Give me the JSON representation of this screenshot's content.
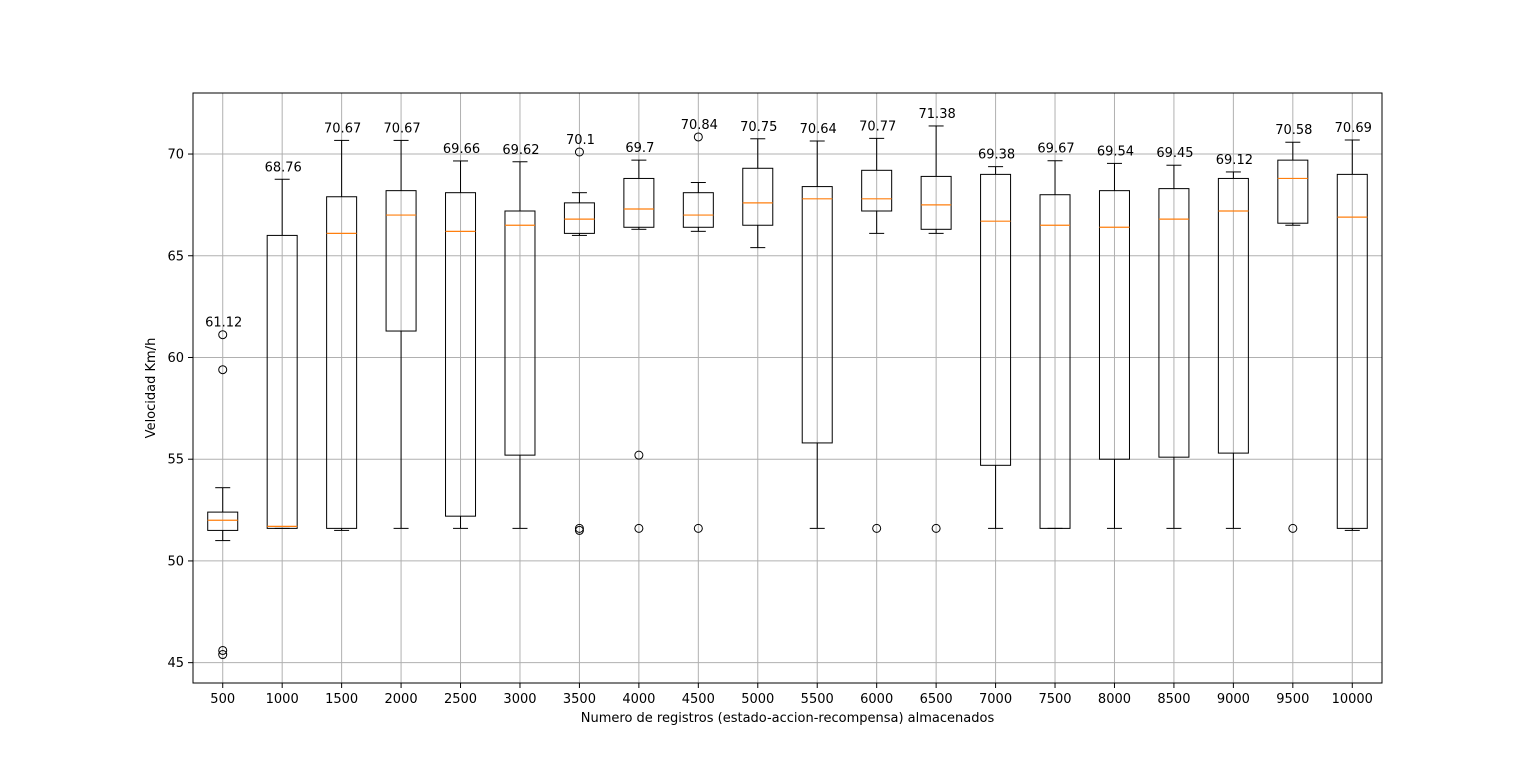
{
  "chart_data": {
    "type": "box",
    "xlabel": "Numero de registros (estado-accion-recompensa) almacenados",
    "ylabel": "Velocidad Km/h",
    "ylim": [
      44,
      73
    ],
    "yticks": [
      45,
      50,
      55,
      60,
      65,
      70
    ],
    "grid": true,
    "colors": {
      "box": "#000000",
      "median": "#ff7f0e",
      "grid": "#b0b0b0"
    },
    "categories": [
      "500",
      "1000",
      "1500",
      "2000",
      "2500",
      "3000",
      "3500",
      "4000",
      "4500",
      "5000",
      "5500",
      "6000",
      "6500",
      "7000",
      "7500",
      "8000",
      "8500",
      "9000",
      "9500",
      "10000"
    ],
    "boxes": [
      {
        "q1": 51.5,
        "median": 52.0,
        "q3": 52.4,
        "whisker_low": 51.0,
        "whisker_high": 53.6,
        "outliers": [
          61.12,
          59.4,
          45.6,
          45.4
        ],
        "annotation": "61.12",
        "annotation_value": 61.12
      },
      {
        "q1": 51.6,
        "median": 51.7,
        "q3": 66.0,
        "whisker_low": 51.6,
        "whisker_high": 68.76,
        "outliers": [],
        "annotation": "68.76",
        "annotation_value": 68.76
      },
      {
        "q1": 51.6,
        "median": 66.1,
        "q3": 67.9,
        "whisker_low": 51.5,
        "whisker_high": 70.67,
        "outliers": [],
        "annotation": "70.67",
        "annotation_value": 70.67
      },
      {
        "q1": 61.3,
        "median": 67.0,
        "q3": 68.2,
        "whisker_low": 51.6,
        "whisker_high": 70.67,
        "outliers": [],
        "annotation": "70.67",
        "annotation_value": 70.67
      },
      {
        "q1": 52.2,
        "median": 66.2,
        "q3": 68.1,
        "whisker_low": 51.6,
        "whisker_high": 69.66,
        "outliers": [],
        "annotation": "69.66",
        "annotation_value": 69.66
      },
      {
        "q1": 55.2,
        "median": 66.5,
        "q3": 67.2,
        "whisker_low": 51.6,
        "whisker_high": 69.62,
        "outliers": [],
        "annotation": "69.62",
        "annotation_value": 69.62
      },
      {
        "q1": 66.1,
        "median": 66.8,
        "q3": 67.6,
        "whisker_low": 66.0,
        "whisker_high": 68.1,
        "outliers": [
          70.1,
          51.6,
          51.5
        ],
        "annotation": "70.1",
        "annotation_value": 70.1
      },
      {
        "q1": 66.4,
        "median": 67.3,
        "q3": 68.8,
        "whisker_low": 66.3,
        "whisker_high": 69.7,
        "outliers": [
          55.2,
          51.6
        ],
        "annotation": "69.7",
        "annotation_value": 69.7
      },
      {
        "q1": 66.4,
        "median": 67.0,
        "q3": 68.1,
        "whisker_low": 66.2,
        "whisker_high": 68.6,
        "outliers": [
          70.84,
          51.6
        ],
        "annotation": "70.84",
        "annotation_value": 70.84
      },
      {
        "q1": 66.5,
        "median": 67.6,
        "q3": 69.3,
        "whisker_low": 65.4,
        "whisker_high": 70.75,
        "outliers": [],
        "annotation": "70.75",
        "annotation_value": 70.75
      },
      {
        "q1": 55.8,
        "median": 67.8,
        "q3": 68.4,
        "whisker_low": 51.6,
        "whisker_high": 70.64,
        "outliers": [],
        "annotation": "70.64",
        "annotation_value": 70.64
      },
      {
        "q1": 67.2,
        "median": 67.8,
        "q3": 69.2,
        "whisker_low": 66.1,
        "whisker_high": 70.77,
        "outliers": [
          51.6
        ],
        "annotation": "70.77",
        "annotation_value": 70.77
      },
      {
        "q1": 66.3,
        "median": 67.5,
        "q3": 68.9,
        "whisker_low": 66.1,
        "whisker_high": 71.38,
        "outliers": [
          51.6
        ],
        "annotation": "71.38",
        "annotation_value": 71.38
      },
      {
        "q1": 54.7,
        "median": 66.7,
        "q3": 69.0,
        "whisker_low": 51.6,
        "whisker_high": 69.38,
        "outliers": [],
        "annotation": "69.38",
        "annotation_value": 69.38
      },
      {
        "q1": 51.6,
        "median": 66.5,
        "q3": 68.0,
        "whisker_low": 51.6,
        "whisker_high": 69.67,
        "outliers": [],
        "annotation": "69.67",
        "annotation_value": 69.67
      },
      {
        "q1": 55.0,
        "median": 66.4,
        "q3": 68.2,
        "whisker_low": 51.6,
        "whisker_high": 69.54,
        "outliers": [],
        "annotation": "69.54",
        "annotation_value": 69.54
      },
      {
        "q1": 55.1,
        "median": 66.8,
        "q3": 68.3,
        "whisker_low": 51.6,
        "whisker_high": 69.45,
        "outliers": [],
        "annotation": "69.45",
        "annotation_value": 69.45
      },
      {
        "q1": 55.3,
        "median": 67.2,
        "q3": 68.8,
        "whisker_low": 51.6,
        "whisker_high": 69.12,
        "outliers": [],
        "annotation": "69.12",
        "annotation_value": 69.12
      },
      {
        "q1": 66.6,
        "median": 68.8,
        "q3": 69.7,
        "whisker_low": 66.5,
        "whisker_high": 70.58,
        "outliers": [
          51.6
        ],
        "annotation": "70.58",
        "annotation_value": 70.58
      },
      {
        "q1": 51.6,
        "median": 66.9,
        "q3": 69.0,
        "whisker_low": 51.5,
        "whisker_high": 70.69,
        "outliers": [],
        "annotation": "70.69",
        "annotation_value": 70.69
      }
    ]
  }
}
